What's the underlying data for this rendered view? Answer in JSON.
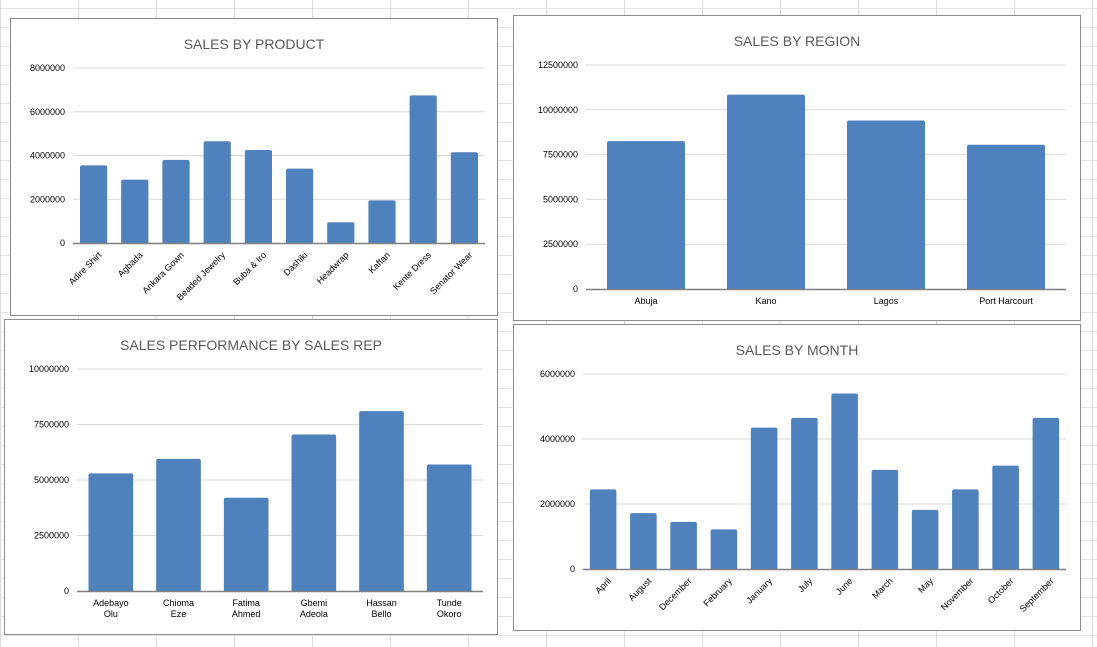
{
  "chart_data": [
    {
      "type": "bar",
      "title": "SALES BY PRODUCT",
      "categories": [
        "Adire Shirt",
        "Agbada",
        "Ankara Gown",
        "Beaded Jewelry",
        "Buba & Iro",
        "Dashiki",
        "Headwrap",
        "Kaftan",
        "Kente Dress",
        "Senator Wear"
      ],
      "values": [
        3550000,
        2900000,
        3800000,
        4650000,
        4250000,
        3400000,
        950000,
        1950000,
        6750000,
        4150000
      ],
      "yticks": [
        "0",
        "2000000",
        "4000000",
        "6000000",
        "8000000"
      ],
      "ylim": [
        0,
        8000000
      ],
      "grid": true,
      "bar_color": "#4f81bd"
    },
    {
      "type": "bar",
      "title": "SALES BY REGION",
      "categories": [
        "Abuja",
        "Kano",
        "Lagos",
        "Port Harcourt"
      ],
      "values": [
        8250000,
        10850000,
        9400000,
        8050000
      ],
      "yticks": [
        "0",
        "2500000",
        "5000000",
        "7500000",
        "10000000",
        "12500000"
      ],
      "ylim": [
        0,
        12500000
      ],
      "grid": true,
      "bar_color": "#4f81bd"
    },
    {
      "type": "bar",
      "title": "SALES PERFORMANCE BY SALES REP",
      "categories": [
        "Adebayo Olu",
        "Chioma Eze",
        "Fatima Ahmed",
        "Gbemi Adeola",
        "Hassan Bello",
        "Tunde Okoro"
      ],
      "values": [
        5300000,
        5950000,
        4200000,
        7050000,
        8100000,
        5700000
      ],
      "yticks": [
        "0",
        "2500000",
        "5000000",
        "7500000",
        "10000000"
      ],
      "ylim": [
        0,
        10000000
      ],
      "grid": true,
      "bar_color": "#4f81bd"
    },
    {
      "type": "bar",
      "title": "SALES BY MONTH",
      "categories": [
        "April",
        "August",
        "December",
        "February",
        "January",
        "July",
        "June",
        "March",
        "May",
        "November",
        "October",
        "September"
      ],
      "values": [
        2450000,
        1720000,
        1450000,
        1220000,
        4350000,
        4650000,
        5400000,
        3050000,
        1820000,
        2450000,
        3180000,
        4650000
      ],
      "yticks": [
        "0",
        "2000000",
        "4000000",
        "6000000"
      ],
      "ylim": [
        0,
        6000000
      ],
      "grid": true,
      "bar_color": "#4f81bd"
    }
  ]
}
